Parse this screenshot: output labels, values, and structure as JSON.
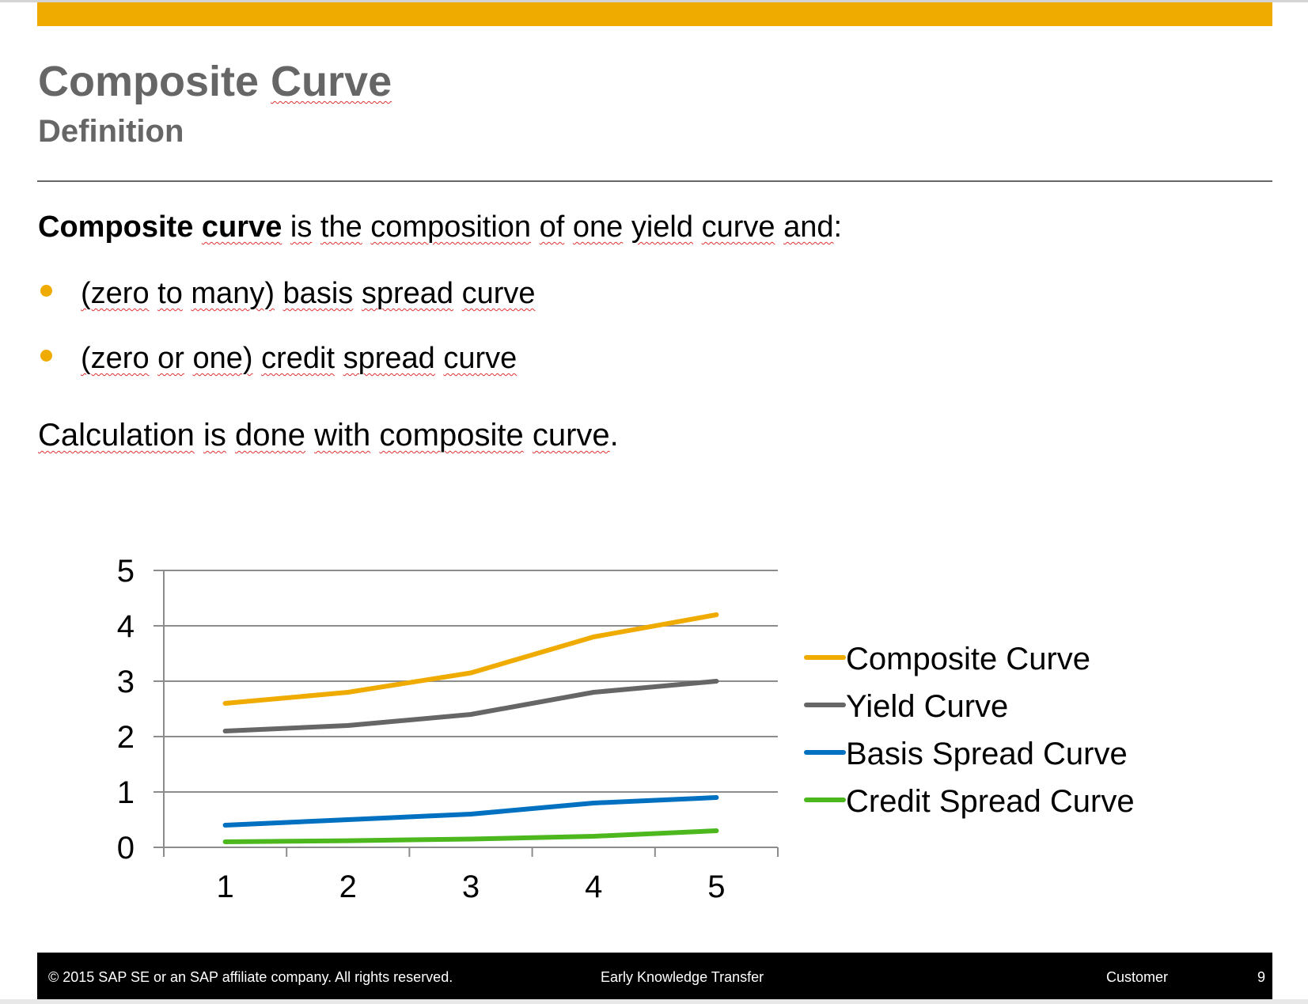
{
  "slide": {
    "accent_color": "#F0AB00",
    "title_word1": "Composite",
    "title_word2": "Curve",
    "subtitle": "Definition"
  },
  "body": {
    "lead_bold_1": "Composite",
    "lead_bold_2": "curve",
    "lead_rest_words": [
      "is",
      "the",
      "composition",
      "of",
      "one",
      "yield",
      "curve",
      "and"
    ],
    "lead_end": ":",
    "bullets": [
      {
        "text_words": [
          "(zero",
          "to",
          "many)",
          "basis",
          "spread",
          "curve"
        ]
      },
      {
        "text_words": [
          "(zero",
          "or",
          "one)",
          "credit",
          "spread",
          "curve"
        ]
      }
    ],
    "bullet_color": "#F0AB00",
    "closing_words": [
      "Calculation",
      "is",
      "done",
      "with",
      "composite",
      "curve"
    ],
    "closing_end": "."
  },
  "chart_data": {
    "type": "line",
    "title": "",
    "xlabel": "",
    "ylabel": "",
    "categories": [
      "1",
      "2",
      "3",
      "4",
      "5"
    ],
    "x": [
      1,
      2,
      3,
      4,
      5
    ],
    "ylim": [
      0,
      5
    ],
    "yticks": [
      "0",
      "1",
      "2",
      "3",
      "4",
      "5"
    ],
    "grid": true,
    "legend_position": "right",
    "series": [
      {
        "name": "Composite Curve",
        "color": "#F0AB00",
        "values": [
          2.6,
          2.8,
          3.15,
          3.8,
          4.2
        ]
      },
      {
        "name": "Yield Curve",
        "color": "#666666",
        "values": [
          2.1,
          2.2,
          2.4,
          2.8,
          3.0
        ]
      },
      {
        "name": "Basis Spread Curve",
        "color": "#0070C0",
        "values": [
          0.4,
          0.5,
          0.6,
          0.8,
          0.9
        ]
      },
      {
        "name": "Credit Spread Curve",
        "color": "#4CB81E",
        "values": [
          0.1,
          0.12,
          0.15,
          0.2,
          0.3
        ]
      }
    ]
  },
  "footer": {
    "copyright": "© 2015 SAP SE or an SAP affiliate company. All rights reserved.",
    "center": "Early Knowledge Transfer",
    "classification": "Customer",
    "page_number": "9"
  }
}
